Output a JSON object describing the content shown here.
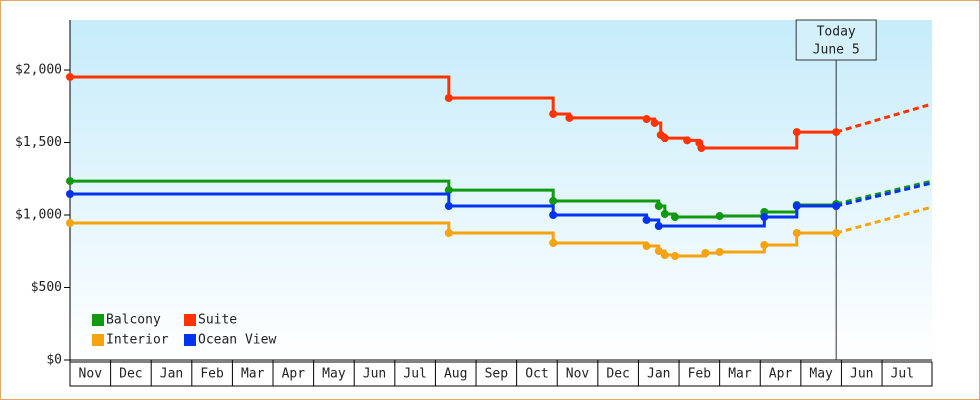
{
  "chart_data": {
    "type": "step-line",
    "xlim": [
      0,
      21.23
    ],
    "ylim": [
      0,
      2345
    ],
    "xticks": [
      {
        "value": 0,
        "label": "Nov"
      },
      {
        "value": 1,
        "label": "Dec"
      },
      {
        "value": 2,
        "label": "Jan"
      },
      {
        "value": 3,
        "label": "Feb"
      },
      {
        "value": 4,
        "label": "Mar"
      },
      {
        "value": 5,
        "label": "Apr"
      },
      {
        "value": 6,
        "label": "May"
      },
      {
        "value": 7,
        "label": "Jun"
      },
      {
        "value": 8,
        "label": "Jul"
      },
      {
        "value": 9,
        "label": "Aug"
      },
      {
        "value": 10,
        "label": "Sep"
      },
      {
        "value": 11,
        "label": "Oct"
      },
      {
        "value": 12,
        "label": "Nov"
      },
      {
        "value": 13,
        "label": "Dec"
      },
      {
        "value": 14,
        "label": "Jan"
      },
      {
        "value": 15,
        "label": "Feb"
      },
      {
        "value": 16,
        "label": "Mar"
      },
      {
        "value": 17,
        "label": "Apr"
      },
      {
        "value": 18,
        "label": "May"
      },
      {
        "value": 19,
        "label": "Jun"
      },
      {
        "value": 20,
        "label": "Jul"
      }
    ],
    "yticks": [
      {
        "value": 0,
        "label": "$0"
      },
      {
        "value": 500,
        "label": "$500"
      },
      {
        "value": 1000,
        "label": "$1,000"
      },
      {
        "value": 1500,
        "label": "$1,500"
      },
      {
        "value": 2000,
        "label": "$2,000"
      }
    ],
    "annotation": {
      "x": 18.87,
      "lines": [
        "Today",
        "June 5"
      ]
    },
    "forecast_x": [
      18.87,
      21.23
    ],
    "legend": "bottom-left",
    "series": [
      {
        "name": "Balcony",
        "color": "#119911",
        "x": [
          0,
          9.33,
          11.9,
          14.5,
          14.65,
          14.9,
          16.0,
          17.1,
          17.9,
          18.87
        ],
        "values": [
          1234,
          1172,
          1097,
          1062,
          1007,
          986,
          993,
          1021,
          1069,
          1076
        ],
        "forecast": [
          1076,
          1234
        ]
      },
      {
        "name": "Suite",
        "color": "#ff3300",
        "x": [
          0,
          9.33,
          11.9,
          12.3,
          14.2,
          14.4,
          14.55,
          14.65,
          15.2,
          15.5,
          15.55,
          17.9,
          18.87
        ],
        "values": [
          1952,
          1807,
          1697,
          1670,
          1662,
          1635,
          1552,
          1530,
          1515,
          1497,
          1462,
          1572,
          1572
        ],
        "forecast": [
          1572,
          1766
        ]
      },
      {
        "name": "Interior",
        "color": "#f5a30f",
        "x": [
          0,
          9.33,
          11.9,
          14.2,
          14.5,
          14.65,
          14.9,
          15.65,
          16.0,
          17.1,
          17.9,
          18.87
        ],
        "values": [
          945,
          876,
          807,
          786,
          752,
          724,
          717,
          738,
          745,
          793,
          876,
          876
        ],
        "forecast": [
          876,
          1055
        ]
      },
      {
        "name": "Ocean View",
        "color": "#0033ee",
        "x": [
          0,
          9.33,
          11.9,
          14.2,
          14.5,
          17.1,
          17.9,
          18.87
        ],
        "values": [
          1145,
          1062,
          1000,
          966,
          924,
          986,
          1062,
          1062
        ],
        "forecast": [
          1062,
          1221
        ]
      }
    ]
  }
}
